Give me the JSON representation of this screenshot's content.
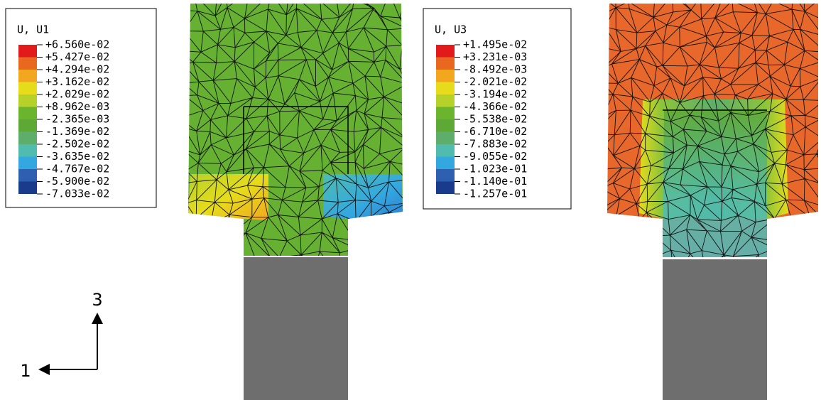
{
  "legends": [
    {
      "title": "U, U1",
      "labels": [
        "+6.560e-02",
        "+5.427e-02",
        "+4.294e-02",
        "+3.162e-02",
        "+2.029e-02",
        "+8.962e-03",
        "-2.365e-03",
        "-1.369e-02",
        "-2.502e-02",
        "-3.635e-02",
        "-4.767e-02",
        "-5.900e-02",
        "-7.033e-02"
      ]
    },
    {
      "title": "U, U3",
      "labels": [
        "+1.495e-02",
        "+3.231e-03",
        "-8.492e-03",
        "-2.021e-02",
        "-3.194e-02",
        "-4.366e-02",
        "-5.538e-02",
        "-6.710e-02",
        "-7.883e-02",
        "-9.055e-02",
        "-1.023e-01",
        "-1.140e-01",
        "-1.257e-01"
      ]
    }
  ],
  "triad": {
    "vertical": "3",
    "horizontal": "1"
  }
}
